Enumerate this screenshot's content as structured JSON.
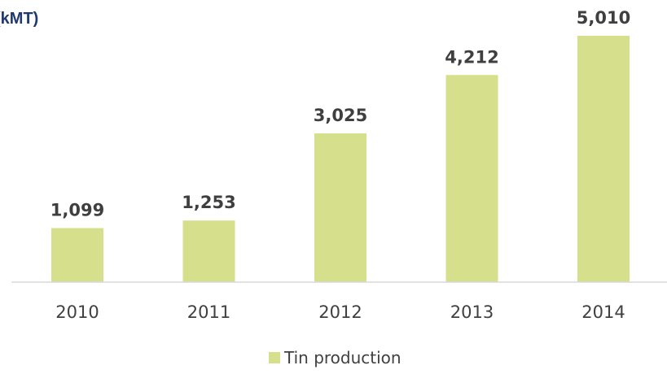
{
  "chart_data": {
    "type": "bar",
    "title": "(kMT)",
    "categories": [
      "2010",
      "2011",
      "2012",
      "2013",
      "2014"
    ],
    "series": [
      {
        "name": "Tin production",
        "values": [
          1099,
          1253,
          3025,
          4212,
          5010
        ],
        "value_labels": [
          "1,099",
          "1,253",
          "3,025",
          "4,212",
          "5,010"
        ],
        "color": "#d6df8c"
      }
    ],
    "xlabel": "",
    "ylabel": "",
    "ylim": [
      0,
      5010
    ],
    "grid": false,
    "legend_position": "bottom"
  }
}
